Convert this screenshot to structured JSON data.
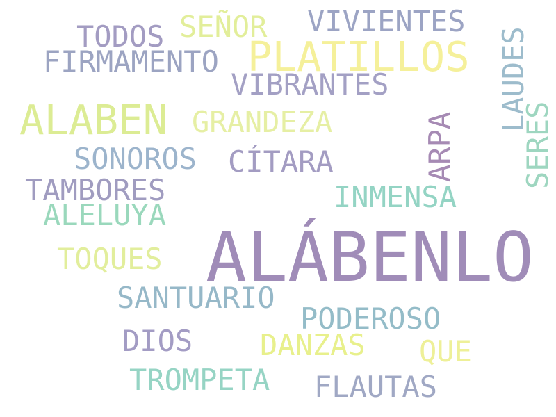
{
  "words": [
    {
      "text": "ALÁBENLO",
      "color": "#a08cb8"
    },
    {
      "text": "PLATILLOS",
      "color": "#f5f09a"
    },
    {
      "text": "ALABEN",
      "color": "#dcec94"
    },
    {
      "text": "VIVIENTES",
      "color": "#9ca4c4"
    },
    {
      "text": "SEÑOR",
      "color": "#e2ee9a"
    },
    {
      "text": "TODOS",
      "color": "#a39cc2"
    },
    {
      "text": "FIRMAMENTO",
      "color": "#9ca4c2"
    },
    {
      "text": "VIBRANTES",
      "color": "#a3a0c4"
    },
    {
      "text": "GRANDEZA",
      "color": "#e6efa4"
    },
    {
      "text": "LAUDES",
      "color": "#9dbccc"
    },
    {
      "text": "ARPA",
      "color": "#a68ab4"
    },
    {
      "text": "SERES",
      "color": "#9ed6c0"
    },
    {
      "text": "SONOROS",
      "color": "#9cb4cc"
    },
    {
      "text": "CÍTARA",
      "color": "#a39cc2"
    },
    {
      "text": "TAMBORES",
      "color": "#a09cc0"
    },
    {
      "text": "INMENSA",
      "color": "#94d4c4"
    },
    {
      "text": "ALELUYA",
      "color": "#9ad8bc"
    },
    {
      "text": "TOQUES",
      "color": "#e2ee9c"
    },
    {
      "text": "SANTUARIO",
      "color": "#96b8c8"
    },
    {
      "text": "PODEROSO",
      "color": "#94bcc8"
    },
    {
      "text": "DIOS",
      "color": "#a39cc4"
    },
    {
      "text": "DANZAS",
      "color": "#e8f08c"
    },
    {
      "text": "QUE",
      "color": "#eef098"
    },
    {
      "text": "TROMPETA",
      "color": "#96d4c4"
    },
    {
      "text": "FLAUTAS",
      "color": "#a0a8c4"
    }
  ]
}
